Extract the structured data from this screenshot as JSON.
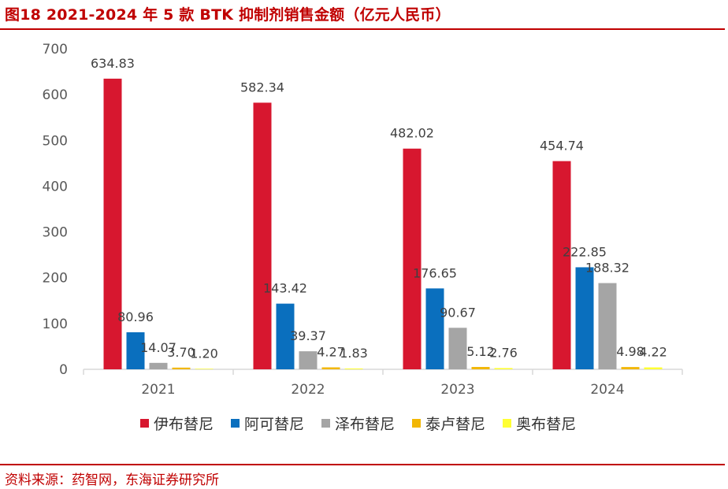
{
  "header": {
    "title": "图18  2021-2024 年 5 款 BTK 抑制剂销售金额（亿元人民币）"
  },
  "footer": {
    "source": "资料来源：药智网，东海证券研究所"
  },
  "colors": {
    "brand": "#c00000",
    "axis": "#d9d9d9",
    "tick_text": "#595959",
    "label_text": "#404040"
  },
  "chart_data": {
    "type": "bar",
    "title": "2021-2024 年 5 款 BTK 抑制剂销售金额（亿元人民币）",
    "xlabel": "",
    "ylabel": "",
    "ylim": [
      0,
      700
    ],
    "yticks": [
      "0",
      "100",
      "200",
      "300",
      "400",
      "500",
      "600",
      "700"
    ],
    "ytick_values": [
      0,
      100,
      200,
      300,
      400,
      500,
      600,
      700
    ],
    "categories": [
      "2021",
      "2022",
      "2023",
      "2024"
    ],
    "series": [
      {
        "name": "伊布替尼",
        "color": "#d7172f",
        "values": [
          634.83,
          582.34,
          482.02,
          454.74
        ],
        "labels": [
          "634.83",
          "582.34",
          "482.02",
          "454.74"
        ]
      },
      {
        "name": "阿可替尼",
        "color": "#0a6fbe",
        "values": [
          80.96,
          143.42,
          176.65,
          222.85
        ],
        "labels": [
          "80.96",
          "143.42",
          "176.65",
          "222.85"
        ]
      },
      {
        "name": "泽布替尼",
        "color": "#a5a5a5",
        "values": [
          14.07,
          39.37,
          90.67,
          188.32
        ],
        "labels": [
          "14.07",
          "39.37",
          "90.67",
          "188.32"
        ]
      },
      {
        "name": "泰卢替尼",
        "color": "#f2b705",
        "values": [
          3.7,
          4.27,
          5.12,
          4.98
        ],
        "labels": [
          "3.70",
          "4.27",
          "5.12",
          "4.98"
        ]
      },
      {
        "name": "奥布替尼",
        "color": "#ffff33",
        "values": [
          1.2,
          1.83,
          2.76,
          4.22
        ],
        "labels": [
          "1.20",
          "1.83",
          "2.76",
          "4.22"
        ]
      }
    ],
    "legend_position": "bottom",
    "grid": false
  }
}
